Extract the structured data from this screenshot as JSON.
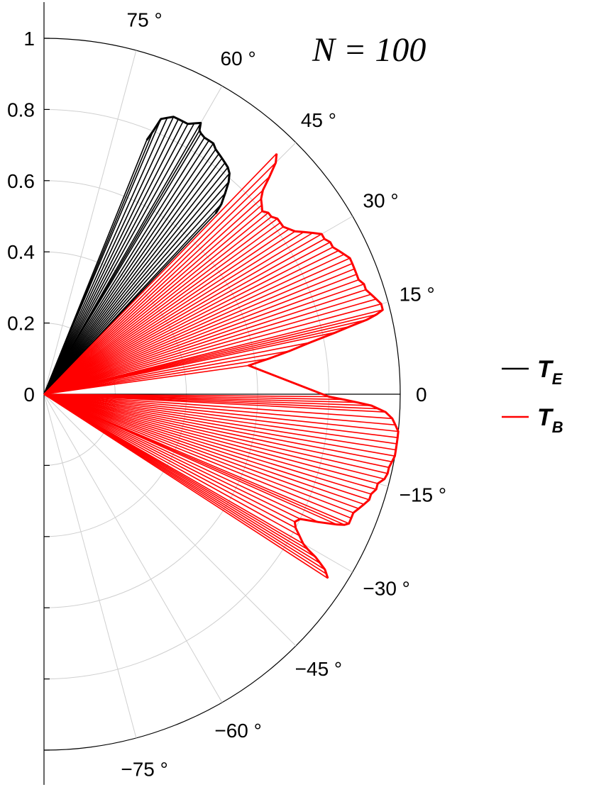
{
  "chart_data": {
    "type": "polar",
    "title": "",
    "annotation": "N = 100",
    "radial_axis": {
      "range": [
        0,
        1
      ],
      "ticks": [
        "0",
        "0.2",
        "0.4",
        "0.6",
        "0.8",
        "1"
      ],
      "tick_values": [
        0,
        0.2,
        0.4,
        0.6,
        0.8,
        1
      ]
    },
    "angular_axis": {
      "range_deg": [
        -90,
        90
      ],
      "tick_values": [
        75,
        60,
        45,
        30,
        15,
        0,
        -15,
        -30,
        -45,
        -60,
        -75
      ],
      "tick_labels": [
        "75 °",
        "60 °",
        "45 °",
        "30 °",
        "15 °",
        "0",
        "−15 °",
        "−30 °",
        "−45 °",
        "−60 °",
        "−75 °"
      ]
    },
    "grid": true,
    "legend": {
      "placement": "right",
      "entries": [
        {
          "main": "T",
          "sub": "E",
          "color": "#000000"
        },
        {
          "main": "T",
          "sub": "B",
          "color": "#ff0000"
        }
      ]
    },
    "series": [
      {
        "color": "#000000",
        "points": [
          [
            46.5,
            0.7
          ],
          [
            47.0,
            0.73
          ],
          [
            48.0,
            0.76
          ],
          [
            49.0,
            0.79
          ],
          [
            50.0,
            0.81
          ],
          [
            51.0,
            0.82
          ],
          [
            52.0,
            0.825
          ],
          [
            53.0,
            0.83
          ],
          [
            54.0,
            0.835
          ],
          [
            55.0,
            0.84
          ],
          [
            56.0,
            0.85
          ],
          [
            57.0,
            0.85
          ],
          [
            58.0,
            0.85
          ],
          [
            59.0,
            0.855
          ],
          [
            59.5,
            0.86
          ],
          [
            60.0,
            0.88
          ],
          [
            61.0,
            0.87
          ],
          [
            62.0,
            0.86
          ],
          [
            63.0,
            0.86
          ],
          [
            64.0,
            0.86
          ],
          [
            65.0,
            0.86
          ],
          [
            66.0,
            0.85
          ],
          [
            67.0,
            0.84
          ],
          [
            67.5,
            0.8
          ],
          [
            68.0,
            0.77
          ]
        ]
      },
      {
        "color": "#ff0000",
        "points": [
          [
            -33.0,
            0.95
          ],
          [
            -32.5,
            0.94
          ],
          [
            -32.0,
            0.93
          ],
          [
            -31.5,
            0.91
          ],
          [
            -31.0,
            0.89
          ],
          [
            -30.5,
            0.86
          ],
          [
            -30.0,
            0.84
          ],
          [
            -29.0,
            0.82
          ],
          [
            -28.0,
            0.8
          ],
          [
            -27.0,
            0.79
          ],
          [
            -26.0,
            0.8
          ],
          [
            -25.0,
            0.85
          ],
          [
            -24.0,
            0.9
          ],
          [
            -23.5,
            0.92
          ],
          [
            -23.0,
            0.93
          ],
          [
            -22.0,
            0.93
          ],
          [
            -21.0,
            0.93
          ],
          [
            -20.0,
            0.94
          ],
          [
            -19.0,
            0.95
          ],
          [
            -18.0,
            0.96
          ],
          [
            -17.0,
            0.96
          ],
          [
            -16.0,
            0.97
          ],
          [
            -15.0,
            0.97
          ],
          [
            -14.0,
            0.985
          ],
          [
            -13.0,
            0.99
          ],
          [
            -12.0,
            0.99
          ],
          [
            -11.0,
            0.995
          ],
          [
            -10.0,
            1.0
          ],
          [
            -9.0,
            1.0
          ],
          [
            -8.0,
            1.0
          ],
          [
            -7.0,
            1.0
          ],
          [
            -6.0,
            1.0
          ],
          [
            -5.0,
            0.99
          ],
          [
            -4.0,
            0.98
          ],
          [
            -3.0,
            0.96
          ],
          [
            -2.5,
            0.94
          ],
          [
            -2.0,
            0.92
          ],
          [
            -1.5,
            0.88
          ],
          [
            -1.0,
            0.84
          ],
          [
            -0.5,
            0.8
          ],
          [
            8.0,
            0.58
          ],
          [
            9.0,
            0.64
          ],
          [
            10.0,
            0.7
          ],
          [
            11.0,
            0.76
          ],
          [
            12.0,
            0.84
          ],
          [
            12.5,
            0.88
          ],
          [
            13.0,
            0.93
          ],
          [
            13.5,
            0.96
          ],
          [
            14.0,
            0.98
          ],
          [
            15.0,
            0.98
          ],
          [
            16.0,
            0.97
          ],
          [
            17.0,
            0.96
          ],
          [
            18.0,
            0.95
          ],
          [
            19.0,
            0.95
          ],
          [
            20.0,
            0.94
          ],
          [
            21.0,
            0.94
          ],
          [
            22.0,
            0.94
          ],
          [
            23.0,
            0.94
          ],
          [
            24.0,
            0.94
          ],
          [
            25.0,
            0.93
          ],
          [
            26.0,
            0.92
          ],
          [
            27.0,
            0.91
          ],
          [
            28.0,
            0.91
          ],
          [
            29.0,
            0.9
          ],
          [
            30.0,
            0.9
          ],
          [
            31.0,
            0.88
          ],
          [
            32.0,
            0.86
          ],
          [
            33.0,
            0.84
          ],
          [
            34.0,
            0.83
          ],
          [
            35.0,
            0.82
          ],
          [
            36.0,
            0.82
          ],
          [
            37.0,
            0.82
          ],
          [
            38.0,
            0.81
          ],
          [
            39.0,
            0.81
          ],
          [
            40.0,
            0.8
          ],
          [
            41.0,
            0.81
          ],
          [
            42.0,
            0.82
          ],
          [
            43.0,
            0.84
          ],
          [
            44.0,
            0.88
          ],
          [
            45.0,
            0.92
          ],
          [
            46.0,
            0.94
          ]
        ]
      }
    ]
  }
}
